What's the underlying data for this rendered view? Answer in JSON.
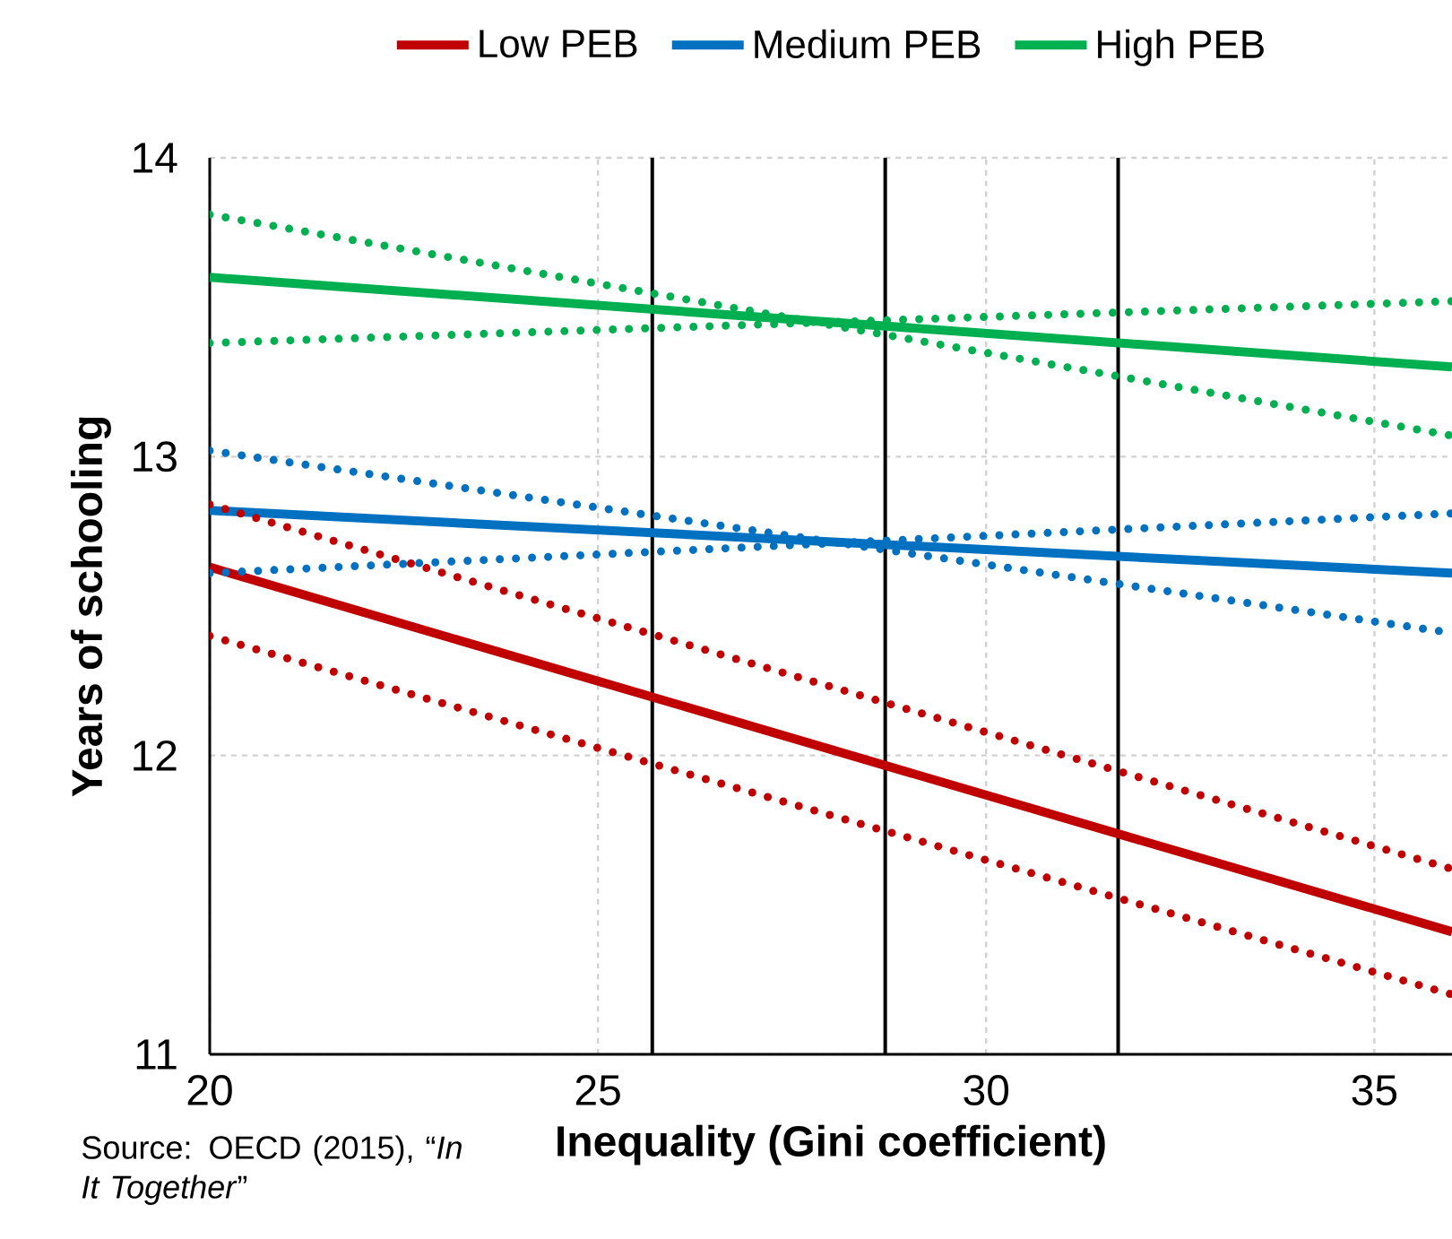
{
  "chart_data": {
    "type": "line",
    "xlabel": "Inequality (Gini coefficient)",
    "ylabel": "Years of schooling",
    "xlim": [
      20,
      36
    ],
    "ylim": [
      11,
      14
    ],
    "xticks": [
      20,
      25,
      30,
      35
    ],
    "yticks": [
      11,
      12,
      13,
      14
    ],
    "grid": true,
    "legend": "top",
    "x": [
      20,
      36
    ],
    "series": [
      {
        "name": "Low PEB",
        "color": "#c00000",
        "values": [
          12.63,
          11.41
        ],
        "line_style": "solid"
      },
      {
        "name": "Medium PEB",
        "color": "#0070c0",
        "values": [
          12.82,
          12.61
        ],
        "line_style": "solid"
      },
      {
        "name": "High PEB",
        "color": "#00b050",
        "values": [
          13.6,
          13.3
        ],
        "line_style": "solid"
      },
      {
        "color": "#c00000",
        "values": [
          12.84,
          11.62
        ],
        "line_style": "dotted"
      },
      {
        "color": "#c00000",
        "values": [
          12.4,
          11.2
        ],
        "line_style": "dotted"
      },
      {
        "color": "#0070c0",
        "values": [
          13.02,
          12.41
        ],
        "line_style": "dotted"
      },
      {
        "color": "#0070c0",
        "values": [
          12.61,
          12.81
        ],
        "line_style": "dotted"
      },
      {
        "color": "#00b050",
        "values": [
          13.81,
          13.07
        ],
        "line_style": "dotted"
      },
      {
        "color": "#00b050",
        "values": [
          13.38,
          13.52
        ],
        "line_style": "dotted"
      }
    ],
    "ref_lines": [
      {
        "axis": "x",
        "value": 25.7,
        "color": "#000000"
      },
      {
        "axis": "x",
        "value": 28.7,
        "color": "#000000"
      },
      {
        "axis": "x",
        "value": 31.7,
        "color": "#000000"
      }
    ],
    "annotations": [
      "Source: OECD (2015), “*In It Together*”"
    ]
  }
}
